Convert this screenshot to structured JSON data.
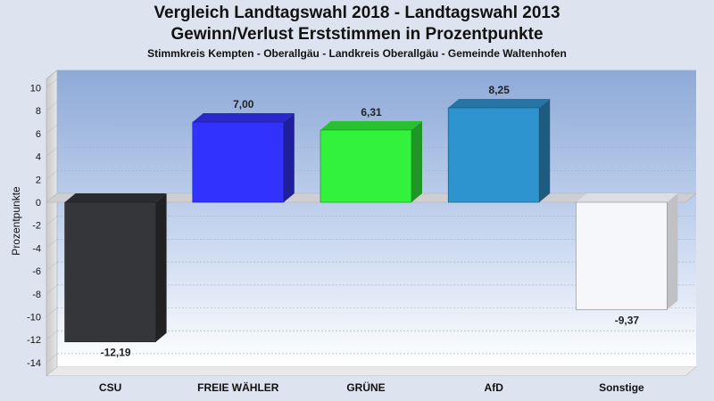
{
  "chart_data": {
    "type": "bar",
    "title": "Vergleich Landtagswahl 2018 - Landtagswahl 2013",
    "subtitle": "Gewinn/Verlust Erststimmen in Prozentpunkte",
    "subtitle2": "Stimmkreis Kempten - Oberallgäu - Landkreis Oberallgäu - Gemeinde Waltenhofen",
    "xlabel": "",
    "ylabel": "Prozentpunkte",
    "ylim": [
      -15,
      11
    ],
    "yticks": [
      10,
      8,
      6,
      4,
      2,
      0,
      -2,
      -4,
      -6,
      -8,
      -10,
      -12,
      -14
    ],
    "categories": [
      "CSU",
      "FREIE WÄHLER",
      "GRÜNE",
      "AfD",
      "Sonstige"
    ],
    "values": [
      -12.19,
      7.0,
      6.31,
      8.25,
      -9.37
    ],
    "value_labels": [
      "-12,19",
      "7,00",
      "6,31",
      "8,25",
      "-9,37"
    ],
    "colors": [
      "#35363a",
      "#3232ff",
      "#32f23c",
      "#2e94cf",
      "#f5f7fb"
    ],
    "grid": true,
    "three_d": true
  }
}
